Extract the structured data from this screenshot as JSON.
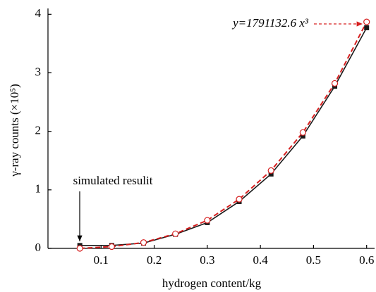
{
  "chart_data": {
    "type": "line",
    "x_label": "hydrogen content/kg",
    "y_label": "γ-ray counts (×10⁵)",
    "x": [
      0.06,
      0.12,
      0.18,
      0.24,
      0.3,
      0.36,
      0.42,
      0.48,
      0.54,
      0.6
    ],
    "series": [
      {
        "color": "#1a1a1a",
        "values": [
          0.05,
          0.05,
          0.09,
          0.24,
          0.44,
          0.8,
          1.27,
          1.92,
          2.77,
          3.77
        ]
      },
      {
        "color": "#d62020",
        "values": [
          0.0,
          0.03,
          0.1,
          0.25,
          0.48,
          0.84,
          1.33,
          1.98,
          2.82,
          3.87
        ]
      }
    ],
    "xlim": [
      0,
      0.615
    ],
    "xticks": [
      0.1,
      0.2,
      0.3,
      0.4,
      0.5,
      0.6
    ],
    "ylim": [
      0,
      4.1
    ],
    "yticks": [
      0,
      1,
      2,
      3,
      4
    ],
    "annotations": [
      "y=1791132.6 x³",
      "simulated resulit"
    ]
  }
}
